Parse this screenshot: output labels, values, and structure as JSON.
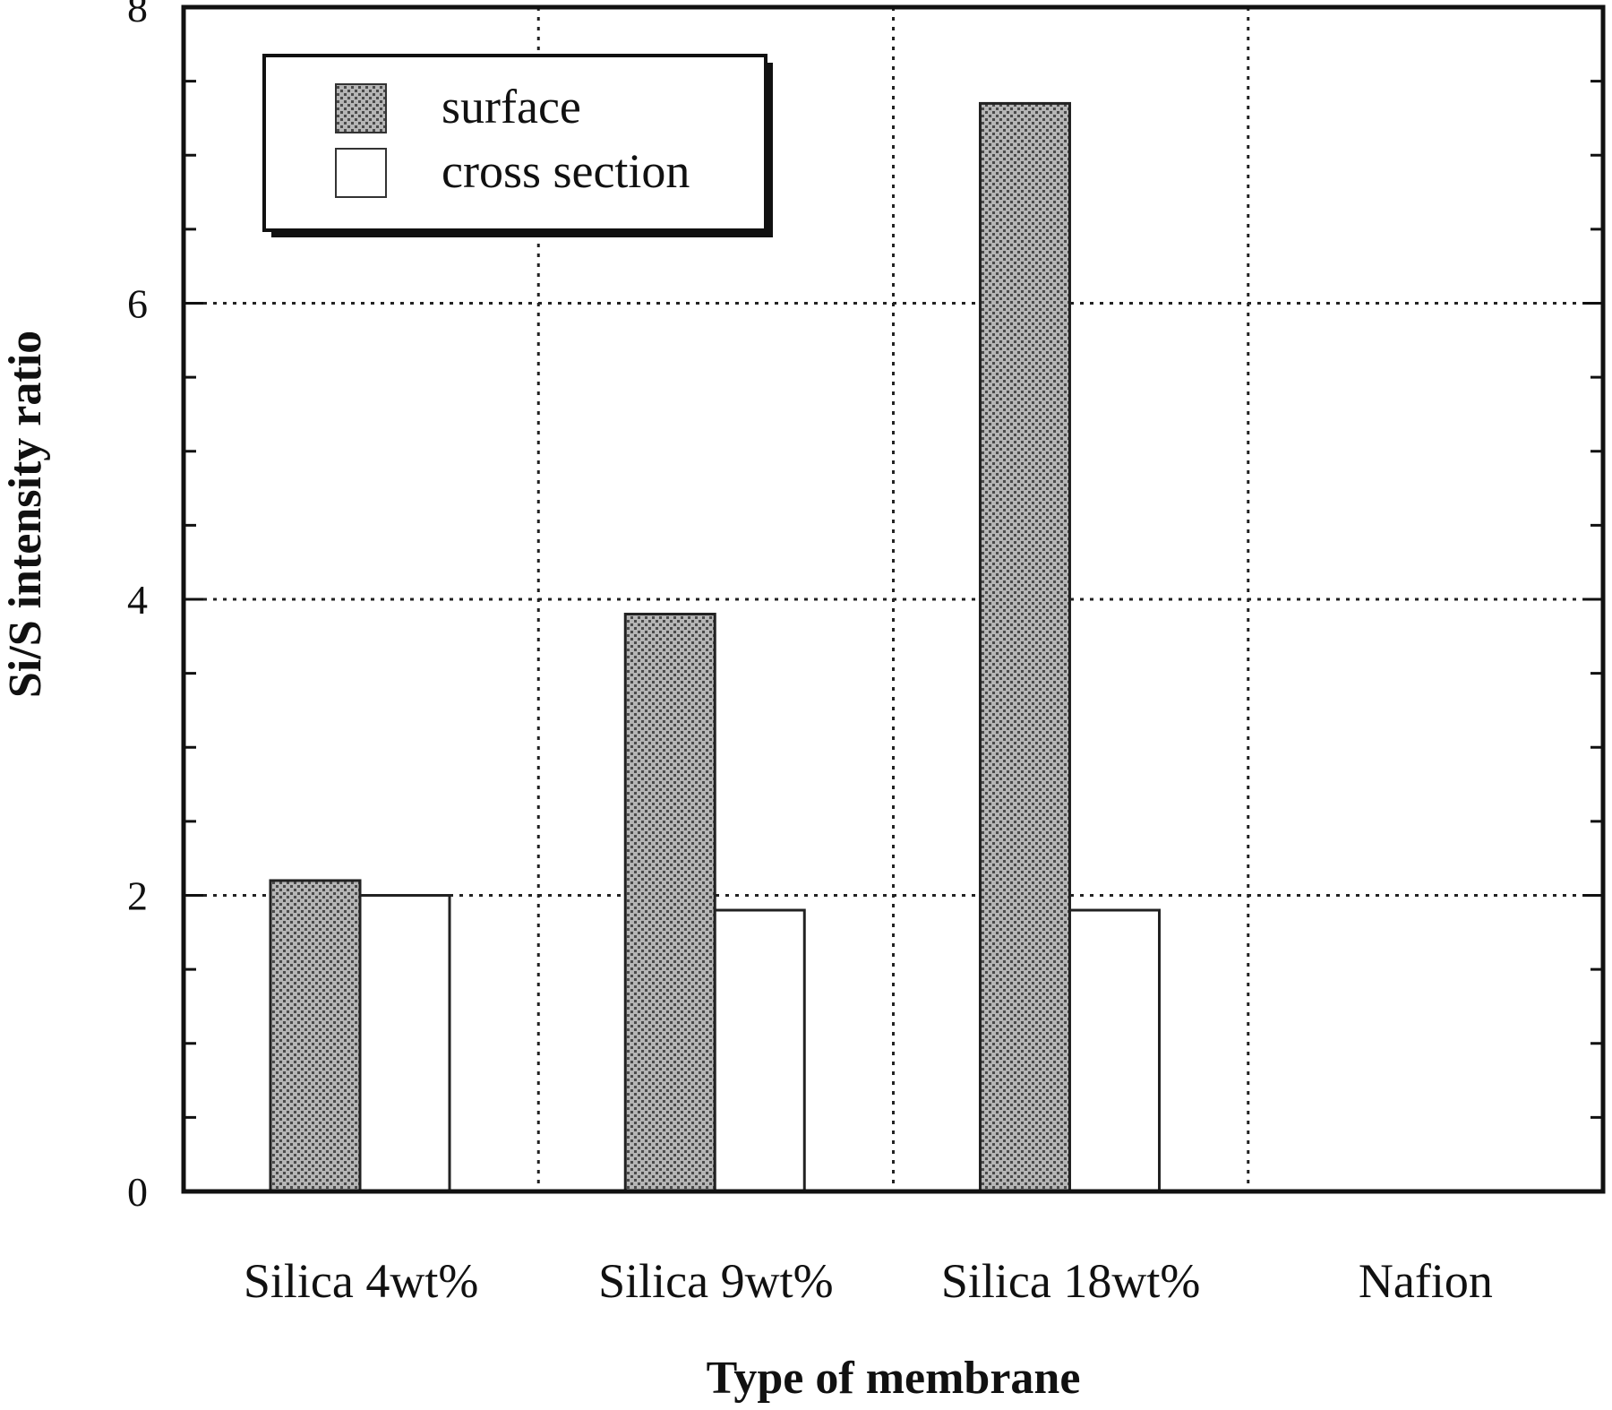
{
  "chart_data": {
    "type": "bar",
    "categories": [
      "Silica 4wt%",
      "Silica 9wt%",
      "Silica 18wt%",
      "Nafion"
    ],
    "series": [
      {
        "name": "surface",
        "values": [
          2.1,
          3.9,
          7.35,
          0
        ],
        "fill": "pattern"
      },
      {
        "name": "cross section",
        "values": [
          2.0,
          1.9,
          1.9,
          0
        ],
        "fill": "#ffffff"
      }
    ],
    "title": "",
    "xlabel": "Type of membrane",
    "ylabel": "Si/S intensity ratio",
    "ylim": [
      0,
      8
    ],
    "yticks": [
      0,
      2,
      4,
      6,
      8
    ],
    "grid": true,
    "legend_position": "top-left"
  }
}
